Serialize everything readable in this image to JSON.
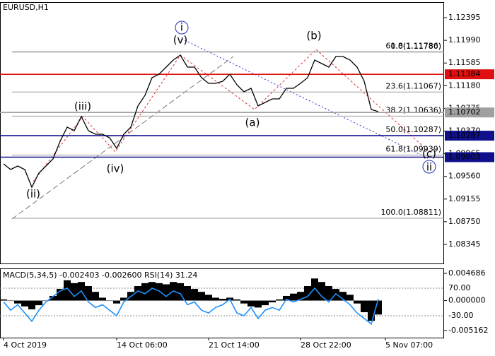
{
  "chart_data": [
    {
      "type": "line",
      "title": "EURUSD,H1",
      "color": "#000000",
      "categories": [
        "4 Oct 2019",
        null,
        null,
        null,
        null,
        null,
        null,
        null,
        null,
        null,
        null,
        null,
        null,
        null,
        null,
        null,
        "14 Oct 06:00",
        null,
        null,
        null,
        null,
        null,
        null,
        null,
        null,
        null,
        null,
        null,
        null,
        "21 Oct 14:00",
        null,
        null,
        null,
        null,
        null,
        null,
        null,
        null,
        null,
        null,
        null,
        null,
        "28 Oct 22:00",
        null,
        null,
        null,
        null,
        null,
        null,
        null,
        null,
        null,
        null,
        null,
        "5 Nov 07:00"
      ],
      "values": [
        1.09783,
        1.09682,
        1.09745,
        1.09682,
        1.09367,
        1.09619,
        1.09745,
        1.09872,
        1.10187,
        1.10439,
        1.10376,
        1.10629,
        1.10376,
        1.10313,
        1.10313,
        1.1025,
        1.10061,
        1.10313,
        1.10439,
        1.10818,
        1.11007,
        1.11323,
        1.11386,
        1.11512,
        1.11638,
        1.11726,
        1.11512,
        1.11512,
        1.11323,
        1.11222,
        1.11222,
        1.1126,
        1.11386,
        1.11196,
        1.1107,
        1.11133,
        1.10818,
        1.10881,
        1.10944,
        1.10944,
        1.11133,
        1.11133,
        1.11222,
        1.11323,
        1.11638,
        1.11575,
        1.11512,
        1.11701,
        1.11701,
        1.11638,
        1.11512,
        1.1126,
        1.10755,
        1.10717,
        null
      ],
      "ylim": [
        1.08004,
        1.12673
      ],
      "yticks": [
        1.12395,
        {
          "value": 1.1199,
          "label": "1.11990"
        },
        1.11585,
        {
          "value": 1.1118,
          "label": "1.11180"
        },
        1.10775,
        {
          "value": 1.1037,
          "label": "1.10370"
        },
        1.09965,
        {
          "value": 1.0956,
          "label": "1.09560"
        },
        1.09155,
        {
          "value": 1.0875,
          "label": "1.08750"
        },
        1.08345
      ],
      "grid": false,
      "levels": [
        {
          "value": 1.11384,
          "color": "#e01010"
        },
        {
          "value": 1.10702,
          "color": "#a0a0a0"
        },
        {
          "value": 1.10287,
          "color": "#10108c"
        },
        {
          "value": 1.09903,
          "color": "#10108c"
        }
      ],
      "fib_levels": [
        {
          "value": 1.11786,
          "label": "61.8(1.11786)"
        },
        {
          "value": 1.1178,
          "label": "0.0(1.11780)"
        },
        {
          "value": 1.11067,
          "label": "23.6(1.11067)"
        },
        {
          "value": 1.10636,
          "label": "38.2(1.10636)"
        },
        {
          "value": 1.10287,
          "label": "50.0(1.10287)"
        },
        {
          "value": 1.09939,
          "label": "61.8(1.09939)"
        },
        {
          "value": 1.08811,
          "label": "100.0(1.08811)"
        }
      ],
      "wave_labels": [
        "i",
        "(v)",
        "(iii)",
        "(iv)",
        "(ii)",
        "(a)",
        "(b)",
        "(c)",
        "ii"
      ]
    },
    {
      "type": "bar",
      "title": "MACD(5,34,5) -0.002403 -0.002600 RSI(14) 31.24",
      "color": "#000000",
      "values": [
        0.0002,
        0.0,
        -0.0005,
        -0.001,
        -0.0015,
        -0.0008,
        0.0,
        0.0008,
        0.002,
        0.0035,
        0.003,
        0.0032,
        0.0025,
        0.0015,
        0.0005,
        0.0,
        -0.0005,
        0.0005,
        0.0015,
        0.0025,
        0.003,
        0.0032,
        0.003,
        0.0028,
        0.0032,
        0.003,
        0.0025,
        0.002,
        0.0015,
        0.001,
        0.0005,
        0.0003,
        0.0005,
        0.0002,
        -0.0005,
        -0.001,
        -0.0012,
        -0.0008,
        -0.0003,
        0.0002,
        0.0008,
        0.0012,
        0.0015,
        0.0025,
        0.0038,
        0.0032,
        0.0025,
        0.002,
        0.0015,
        0.001,
        -0.0005,
        -0.002,
        -0.0035,
        -0.0024,
        null
      ],
      "ylim": [
        -0.006378,
        0.005537
      ],
      "yticks": [
        0.004686,
        {
          "value": 0,
          "label": "0.000000"
        },
        -0.005162
      ],
      "series": [
        {
          "color": "#1e90ff",
          "axis": "y2",
          "values": [
            20,
            -10,
            10,
            -20,
            -50,
            -10,
            20,
            40,
            60,
            70,
            40,
            60,
            20,
            0,
            10,
            -10,
            -30,
            20,
            40,
            60,
            50,
            70,
            60,
            40,
            60,
            50,
            10,
            20,
            -10,
            -20,
            0,
            10,
            30,
            -20,
            -30,
            0,
            -40,
            -10,
            0,
            -10,
            30,
            20,
            30,
            40,
            70,
            40,
            20,
            50,
            30,
            10,
            -20,
            -40,
            -60,
            31.24,
            null
          ]
        }
      ],
      "y2lim": [
        -109.5,
        141.8
      ],
      "y2ticks": [
        {
          "value": 70,
          "label": "70.00"
        },
        {
          "value": -30,
          "label": "-30.00"
        }
      ]
    }
  ]
}
